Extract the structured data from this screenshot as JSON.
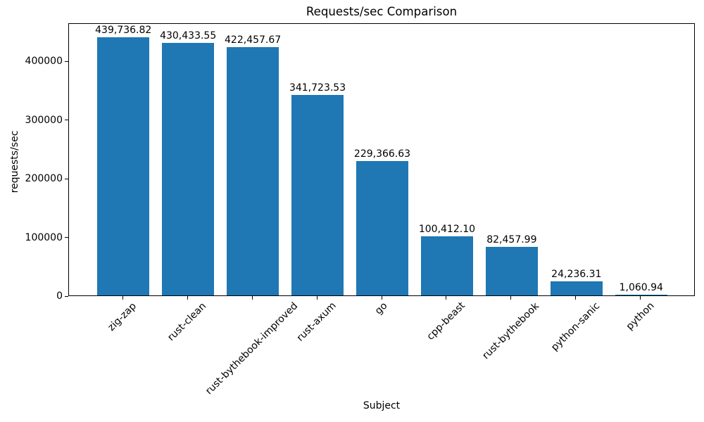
{
  "chart_data": {
    "type": "bar",
    "title": "Requests/sec Comparison",
    "xlabel": "Subject",
    "ylabel": "requests/sec",
    "categories": [
      "zig-zap",
      "rust-clean",
      "rust-bythebook-improved",
      "rust-axum",
      "go",
      "cpp-beast",
      "rust-bythebook",
      "python-sanic",
      "python"
    ],
    "values": [
      439736.82,
      430433.55,
      422457.67,
      341723.53,
      229366.63,
      100412.1,
      82457.99,
      24236.31,
      1060.94
    ],
    "value_labels": [
      "439,736.82",
      "430,433.55",
      "422,457.67",
      "341,723.53",
      "229,366.63",
      "100,412.10",
      "82,457.99",
      "24,236.31",
      "1,060.94"
    ],
    "yticks": [
      0,
      100000,
      200000,
      300000,
      400000
    ],
    "ytick_labels": [
      "0",
      "100000",
      "200000",
      "300000",
      "400000"
    ],
    "ylim": [
      0,
      465000
    ],
    "bar_color": "#1f77b4",
    "grid": false,
    "legend": null
  }
}
